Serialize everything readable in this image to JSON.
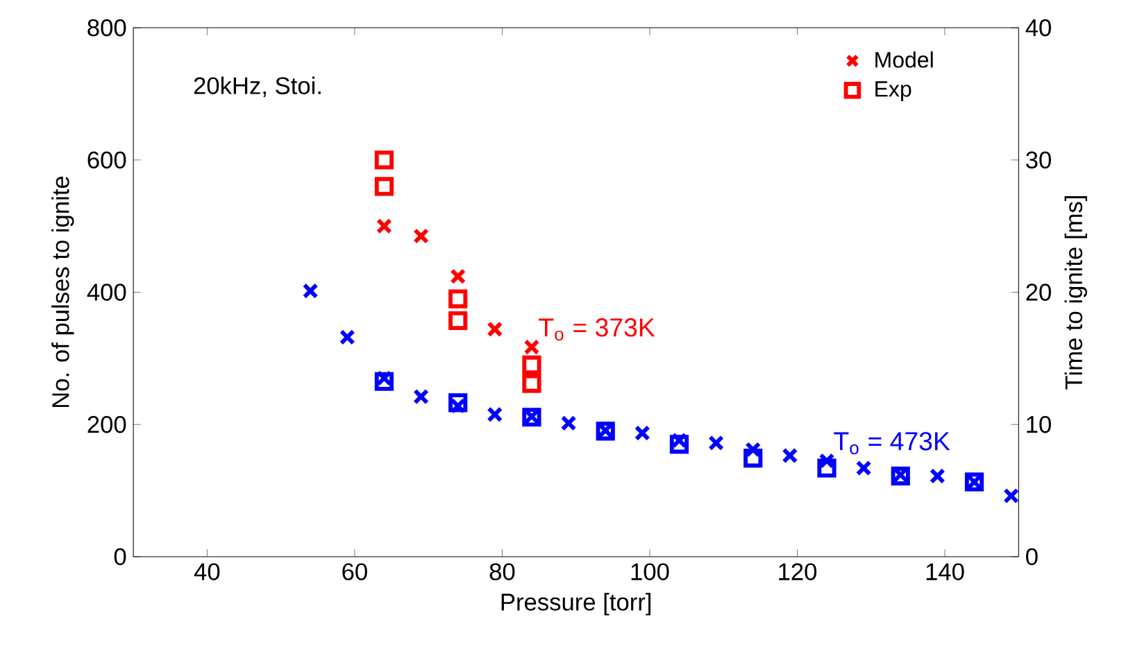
{
  "chart_data": {
    "type": "scatter",
    "xlabel": "Pressure [torr]",
    "ylabel": "No. of pulses to ignite",
    "y2label": "Time to ignite [ms]",
    "xlim": [
      30,
      150
    ],
    "xticks": [
      40,
      60,
      80,
      100,
      120,
      140
    ],
    "ylim": [
      0,
      800
    ],
    "yticks": [
      0,
      200,
      400,
      600,
      800
    ],
    "y2lim": [
      0,
      40
    ],
    "y2ticks": [
      0,
      10,
      20,
      30,
      40
    ],
    "legend": "top right",
    "grid": false,
    "annotations": [
      "20kHz, Stoi.",
      {
        "text": "T$_{o}$ = 373K",
        "x": 84,
        "y": 317
      },
      {
        "text": "T$_{o}$ = 473K",
        "x": 124,
        "y": 145
      }
    ],
    "series": [
      {
        "name": "Model",
        "color": "#ff0000",
        "marker": "cross",
        "x": [
          64,
          69,
          74,
          79,
          84
        ],
        "values": [
          500,
          485,
          424,
          344,
          317
        ]
      },
      {
        "name": "Exp",
        "color": "#ff0000",
        "marker": "square",
        "x": [
          64,
          64,
          74,
          74,
          84,
          84
        ],
        "values": [
          600,
          560,
          390,
          357,
          290,
          262
        ]
      },
      {
        "color": "#0000ff",
        "marker": "cross",
        "x": [
          54,
          59,
          64,
          69,
          74,
          79,
          84,
          89,
          94,
          99,
          104,
          109,
          114,
          119,
          124,
          129,
          134,
          139,
          144,
          149
        ],
        "values": [
          402,
          332,
          270,
          242,
          228,
          215,
          212,
          202,
          191,
          187,
          176,
          172,
          162,
          153,
          145,
          134,
          124,
          122,
          113,
          92
        ]
      },
      {
        "color": "#0000ff",
        "marker": "square",
        "x": [
          64,
          74,
          84,
          94,
          104,
          114,
          124,
          134,
          144
        ],
        "values": [
          265,
          233,
          211,
          190,
          170,
          149,
          134,
          122,
          113
        ]
      }
    ]
  }
}
